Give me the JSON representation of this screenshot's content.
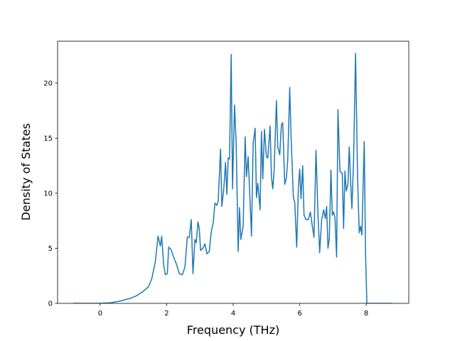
{
  "chart_data": {
    "type": "line",
    "xlabel": "Frequency (THz)",
    "ylabel": "Density of States",
    "xlim": [
      -1.28,
      9.28
    ],
    "ylim": [
      0,
      23.8
    ],
    "xticks": [
      0,
      2,
      4,
      6,
      8
    ],
    "yticks": [
      0,
      5,
      10,
      15,
      20
    ],
    "grid": false,
    "series": [
      {
        "color": "#1f77b4",
        "x": [
          -0.81,
          0,
          0.3,
          0.6,
          0.9,
          1.1,
          1.3,
          1.45,
          1.55,
          1.66,
          1.74,
          1.81,
          1.85,
          1.91,
          1.96,
          2.02,
          2.06,
          2.13,
          2.21,
          2.3,
          2.38,
          2.47,
          2.55,
          2.62,
          2.68,
          2.74,
          2.79,
          2.85,
          2.89,
          2.94,
          2.98,
          3.02,
          3.09,
          3.15,
          3.21,
          3.28,
          3.34,
          3.4,
          3.45,
          3.51,
          3.55,
          3.62,
          3.66,
          3.72,
          3.77,
          3.81,
          3.85,
          3.89,
          3.94,
          3.98,
          4.04,
          4.09,
          4.15,
          4.19,
          4.23,
          4.3,
          4.36,
          4.4,
          4.45,
          4.49,
          4.55,
          4.6,
          4.66,
          4.7,
          4.74,
          4.81,
          4.85,
          4.89,
          4.94,
          5.0,
          5.04,
          5.11,
          5.15,
          5.19,
          5.23,
          5.3,
          5.34,
          5.4,
          5.45,
          5.49,
          5.55,
          5.6,
          5.64,
          5.7,
          5.74,
          5.81,
          5.85,
          5.91,
          5.96,
          6.0,
          6.04,
          6.09,
          6.13,
          6.19,
          6.26,
          6.32,
          6.38,
          6.43,
          6.49,
          6.55,
          6.6,
          6.66,
          6.72,
          6.77,
          6.81,
          6.85,
          6.89,
          6.94,
          6.98,
          7.02,
          7.06,
          7.11,
          7.15,
          7.21,
          7.28,
          7.32,
          7.36,
          7.4,
          7.45,
          7.49,
          7.53,
          7.57,
          7.62,
          7.68,
          7.74,
          7.79,
          7.83,
          7.87,
          7.94,
          7.98,
          8.02,
          8.79
        ],
        "values": [
          0,
          0,
          0.05,
          0.2,
          0.45,
          0.7,
          1.1,
          1.5,
          2.2,
          3.8,
          6.1,
          5.2,
          6.1,
          3.5,
          2.6,
          2.7,
          5.1,
          4.9,
          4.2,
          3.5,
          2.7,
          2.6,
          3.3,
          6.0,
          6.0,
          7.6,
          2.7,
          5.8,
          5.5,
          7.4,
          6.8,
          4.8,
          5.0,
          5.4,
          4.5,
          4.7,
          6.5,
          7.3,
          9.1,
          8.9,
          9.3,
          14.0,
          8.8,
          10.5,
          12.8,
          9.9,
          13.2,
          13.1,
          22.6,
          10.4,
          18.0,
          14.5,
          4.7,
          8.7,
          5.8,
          7.0,
          15.1,
          11.5,
          13.3,
          10.5,
          6.1,
          14.5,
          15.9,
          9.6,
          10.9,
          8.5,
          15.6,
          11.3,
          15.8,
          13.3,
          13.2,
          16.1,
          11.5,
          10.4,
          12.0,
          18.4,
          14.2,
          13.5,
          16.2,
          16.4,
          10.8,
          11.4,
          13.0,
          19.6,
          15.2,
          9.6,
          9.2,
          5.1,
          10.5,
          12.2,
          9.5,
          12.5,
          8.0,
          7.6,
          7.6,
          8.3,
          7.0,
          6.0,
          13.9,
          8.0,
          4.6,
          7.6,
          8.5,
          7.7,
          8.8,
          5.0,
          5.9,
          12.1,
          8.0,
          8.3,
          7.8,
          4.2,
          17.6,
          12.0,
          11.8,
          6.8,
          12.0,
          10.2,
          10.8,
          14.2,
          11.1,
          8.6,
          13.0,
          22.7,
          11.5,
          6.4,
          7.0,
          6.2,
          14.7,
          4.5,
          0,
          0
        ]
      }
    ]
  }
}
